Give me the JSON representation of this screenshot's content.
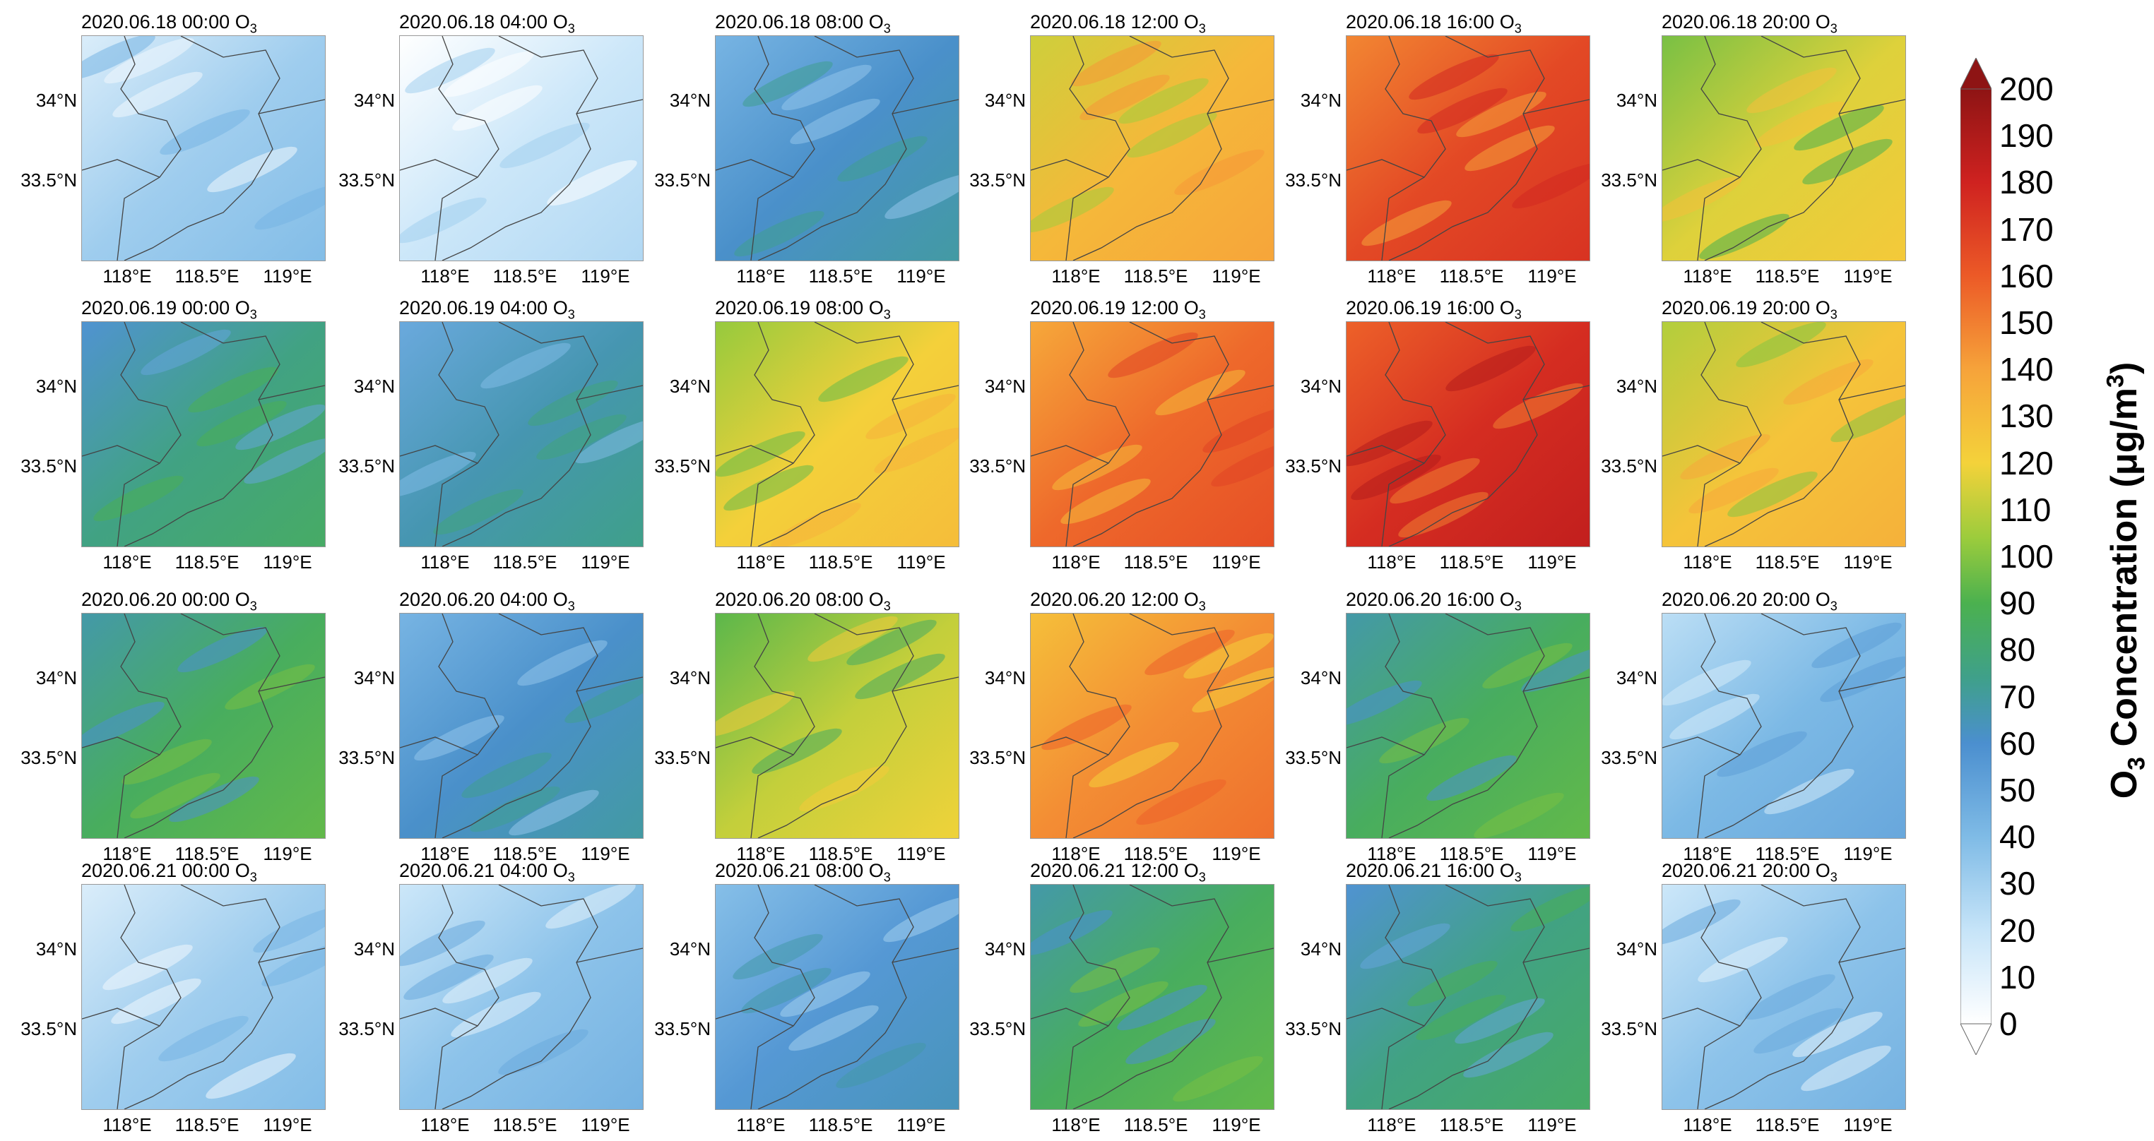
{
  "chart_data": {
    "type": "heatmap",
    "variable": "O3",
    "colorbar": {
      "label_prefix": "O",
      "label_sub": "3",
      "label_mid": " Concentration (μg/m",
      "label_sup": "3",
      "label_suffix": ")",
      "min": 0,
      "max": 200,
      "ticks": [
        "0",
        "10",
        "20",
        "30",
        "40",
        "50",
        "60",
        "70",
        "80",
        "90",
        "100",
        "110",
        "120",
        "130",
        "140",
        "150",
        "160",
        "170",
        "180",
        "190",
        "200"
      ],
      "extend": "both"
    },
    "x_ticks": [
      "118°E",
      "118.5°E",
      "119°E"
    ],
    "y_ticks": [
      "34°N",
      "33.5°N"
    ],
    "panels": [
      {
        "title": "2020.06.18 00:00 O",
        "level": 25
      },
      {
        "title": "2020.06.18 04:00 O",
        "level": 12
      },
      {
        "title": "2020.06.18 08:00 O",
        "level": 55
      },
      {
        "title": "2020.06.18 12:00 O",
        "level": 125
      },
      {
        "title": "2020.06.18 16:00 O",
        "level": 160
      },
      {
        "title": "2020.06.18 20:00 O",
        "level": 110
      },
      {
        "title": "2020.06.19 00:00 O",
        "level": 70
      },
      {
        "title": "2020.06.19 04:00 O",
        "level": 60
      },
      {
        "title": "2020.06.19 08:00 O",
        "level": 115
      },
      {
        "title": "2020.06.19 12:00 O",
        "level": 150
      },
      {
        "title": "2020.06.19 16:00 O",
        "level": 170
      },
      {
        "title": "2020.06.19 20:00 O",
        "level": 120
      },
      {
        "title": "2020.06.20 00:00 O",
        "level": 80
      },
      {
        "title": "2020.06.20 04:00 O",
        "level": 55
      },
      {
        "title": "2020.06.20 08:00 O",
        "level": 105
      },
      {
        "title": "2020.06.20 12:00 O",
        "level": 140
      },
      {
        "title": "2020.06.20 16:00 O",
        "level": 80
      },
      {
        "title": "2020.06.20 20:00 O",
        "level": 35
      },
      {
        "title": "2020.06.21 00:00 O",
        "level": 25
      },
      {
        "title": "2020.06.21 04:00 O",
        "level": 30
      },
      {
        "title": "2020.06.21 08:00 O",
        "level": 50
      },
      {
        "title": "2020.06.21 12:00 O",
        "level": 80
      },
      {
        "title": "2020.06.21 16:00 O",
        "level": 70
      },
      {
        "title": "2020.06.21 20:00 O",
        "level": 30
      }
    ],
    "title_sub": "3"
  }
}
